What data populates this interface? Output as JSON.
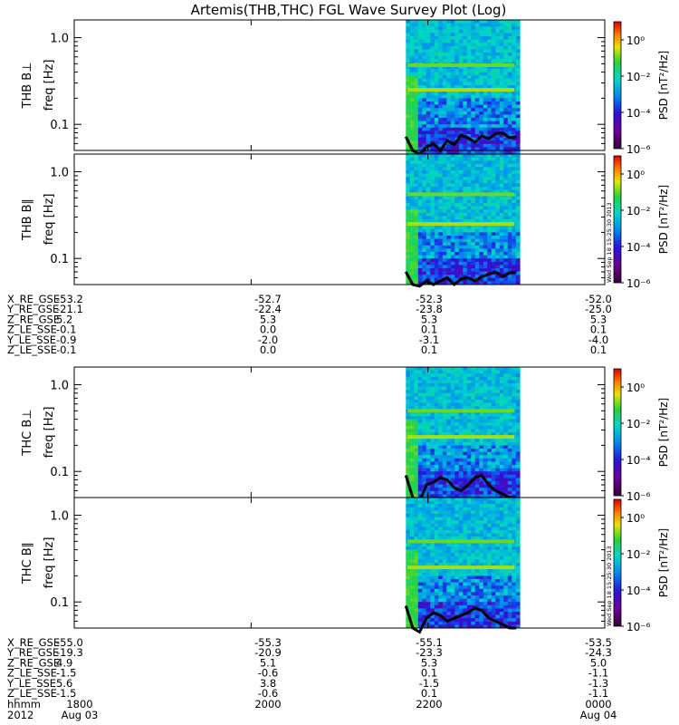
{
  "title": "Artemis(THB,THC) FGL Wave Survey Plot (Log)",
  "stamp": "Wed Sep 18 15:25:30 2013",
  "colors": {
    "line": "#000000",
    "background": "#ffffff"
  },
  "chart_data": {
    "type": "heatmap",
    "x_axis": {
      "label": "hhmm",
      "ticks": [
        "1800",
        "2000",
        "2200",
        "0000"
      ]
    },
    "y_axis": {
      "scale": "log",
      "range": [
        0.05,
        1.6
      ],
      "tick_labels": [
        "0.1",
        "1.0"
      ],
      "label": "freq [Hz]"
    },
    "colorbar": {
      "label": "PSD [nT²/Hz]",
      "scale": "log",
      "range": [
        1e-06,
        10
      ],
      "tick_labels": [
        "10⁻⁶",
        "10⁻⁴",
        "10⁻²",
        "10⁰"
      ]
    },
    "data_coverage": {
      "start": "2145",
      "end": "2300"
    },
    "panels": [
      {
        "probe": "THB",
        "component": "⊥",
        "label": "THB B⊥",
        "band_hz": [
          0.48,
          0.25
        ],
        "trace_hz": [
          0.072,
          0.05,
          0.045,
          0.055,
          0.06,
          0.05,
          0.065,
          0.058,
          0.075,
          0.07,
          0.062,
          0.074,
          0.068,
          0.078,
          0.08,
          0.07,
          0.072
        ]
      },
      {
        "probe": "THB",
        "component": "∥",
        "label": "THB B∥",
        "band_hz": [
          0.55,
          0.25
        ],
        "trace_hz": [
          0.07,
          0.05,
          0.048,
          0.055,
          0.05,
          0.055,
          0.06,
          0.05,
          0.058,
          0.06,
          0.055,
          0.062,
          0.066,
          0.07,
          0.062,
          0.068,
          0.07
        ]
      },
      {
        "probe": "THC",
        "component": "⊥",
        "label": "THC B⊥",
        "band_hz": [
          0.5,
          0.25
        ],
        "trace_hz": [
          0.09,
          0.05,
          0.045,
          0.07,
          0.075,
          0.085,
          0.08,
          0.065,
          0.06,
          0.07,
          0.085,
          0.09,
          0.07,
          0.06,
          0.055,
          0.05,
          0.05
        ]
      },
      {
        "probe": "THC",
        "component": "∥",
        "label": "THC B∥",
        "band_hz": [
          0.5,
          0.25
        ],
        "trace_hz": [
          0.09,
          0.05,
          0.045,
          0.065,
          0.075,
          0.07,
          0.06,
          0.065,
          0.07,
          0.075,
          0.085,
          0.08,
          0.065,
          0.06,
          0.055,
          0.05,
          0.05
        ]
      }
    ],
    "orbit_tables": [
      {
        "probe": "THB",
        "rows": [
          {
            "label": "X_RE_GSE",
            "values": [
              "-53.2",
              "-52.7",
              "-52.3",
              "-52.0"
            ]
          },
          {
            "label": "Y_RE_GSE",
            "values": [
              "-21.1",
              "-22.4",
              "-23.8",
              "-25.0"
            ]
          },
          {
            "label": "Z_RE_GSE",
            "values": [
              "5.2",
              "5.3",
              "5.3",
              "5.3"
            ]
          },
          {
            "label": "Z_LE_SSE",
            "values": [
              "-0.1",
              "0.0",
              "0.1",
              "0.1"
            ]
          },
          {
            "label": "Y_LE_SSE",
            "values": [
              "-0.9",
              "-2.0",
              "-3.1",
              "-4.0"
            ]
          },
          {
            "label": "Z_LE_SSE",
            "values": [
              "-0.1",
              "0.0",
              "0.1",
              "0.1"
            ]
          }
        ]
      },
      {
        "probe": "THC",
        "rows": [
          {
            "label": "X_RE_GSE",
            "values": [
              "-55.0",
              "-55.3",
              "-55.1",
              "-53.5"
            ]
          },
          {
            "label": "Y_RE_GSE",
            "values": [
              "-19.3",
              "-20.9",
              "-23.3",
              "-24.3"
            ]
          },
          {
            "label": "Z_RE_GSE",
            "values": [
              "4.9",
              "5.1",
              "5.3",
              "5.0"
            ]
          },
          {
            "label": "Z_LE_SSE",
            "values": [
              "-1.5",
              "-0.6",
              "0.1",
              "-1.1"
            ]
          },
          {
            "label": "Y_LE_SSE",
            "values": [
              "5.6",
              "3.8",
              "-1.5",
              "-1.3"
            ]
          },
          {
            "label": "Z_LE_SSE",
            "values": [
              "-1.5",
              "-0.6",
              "0.1",
              "-1.1"
            ]
          }
        ]
      }
    ],
    "date_row": {
      "year": "2012",
      "start": "Aug 03",
      "end": "Aug 04"
    }
  }
}
